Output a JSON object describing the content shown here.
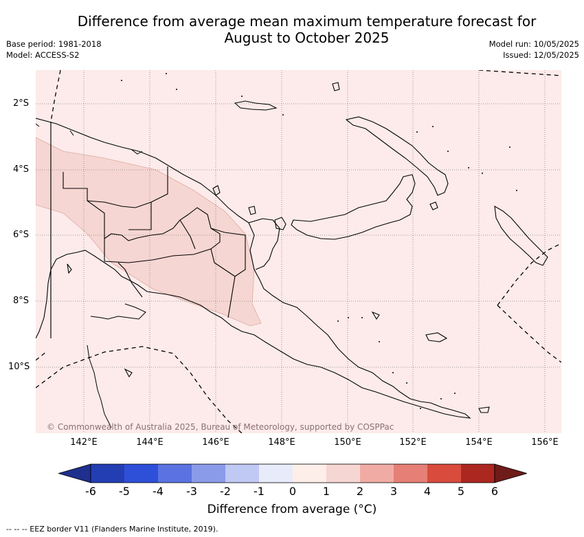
{
  "header": {
    "title_line1": "Difference from average mean maximum temperature forecast for",
    "title_line2": "August to October 2025",
    "base_period": "Base period: 1981-2018",
    "model": "Model: ACCESS-S2",
    "model_run": "Model run: 10/05/2025",
    "issued": "Issued: 12/05/2025"
  },
  "map": {
    "copyright": "© Commonwealth of Australia 2025, Bureau of Meteorology, supported by COSPPac",
    "lat_labels": [
      "2°S",
      "4°S",
      "6°S",
      "8°S",
      "10°S"
    ],
    "lon_labels": [
      "142°E",
      "144°E",
      "146°E",
      "148°E",
      "150°E",
      "152°E",
      "154°E",
      "156°E"
    ],
    "colors": {
      "background_anomaly_0_to_1": "#fcebea",
      "anomaly_1_to_2": "#f6d6d2",
      "coastline": "#000000",
      "grid": "#7f7f7f"
    }
  },
  "colorbar": {
    "ticks": [
      "-6",
      "-5",
      "-4",
      "-3",
      "-2",
      "-1",
      "0",
      "1",
      "2",
      "3",
      "4",
      "5",
      "6"
    ],
    "colors": [
      "#1f2f8e",
      "#233eb3",
      "#2e4fd8",
      "#5b72e2",
      "#8a9bea",
      "#c0c8f4",
      "#e8ebfa",
      "#fdeeea",
      "#f6d6d2",
      "#f0aca4",
      "#e67f76",
      "#d84b3d",
      "#ab2720",
      "#6e1b1a"
    ],
    "label": "Difference from average (°C)"
  },
  "footnote": "--  --  -- EEZ border V11 (Flanders Marine Institute, 2019)."
}
